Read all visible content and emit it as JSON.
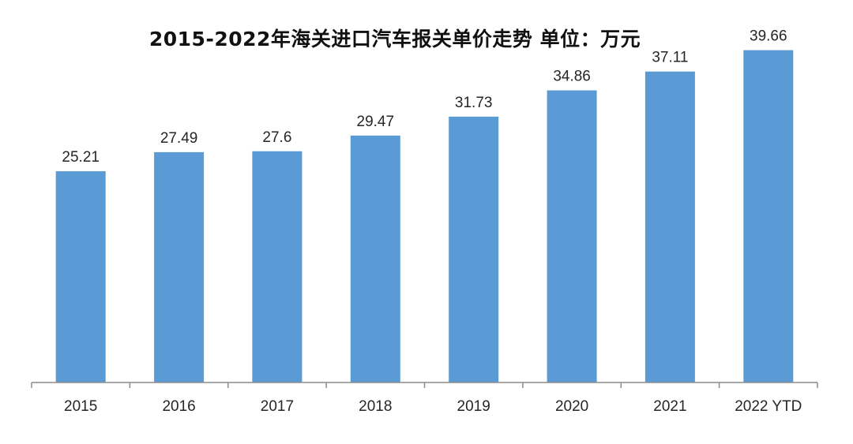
{
  "chart_data": {
    "type": "bar",
    "title": "2015-2022年海关进口汽车报关单价走势  单位：万元",
    "categories": [
      "2015",
      "2016",
      "2017",
      "2018",
      "2019",
      "2020",
      "2021",
      "2022 YTD"
    ],
    "series": [
      {
        "values": [
          25.21,
          27.49,
          27.6,
          29.47,
          31.73,
          34.86,
          37.11,
          39.66
        ],
        "value_labels": [
          "25.21",
          "27.49",
          "27.6",
          "29.47",
          "31.73",
          "34.86",
          "37.11",
          "39.66"
        ],
        "color": "#5b9bd5"
      }
    ],
    "xlabel": "",
    "ylabel": "",
    "ylim": [
      0,
      40
    ],
    "grid": false,
    "legend": "none",
    "data_labels": "above-bars"
  }
}
